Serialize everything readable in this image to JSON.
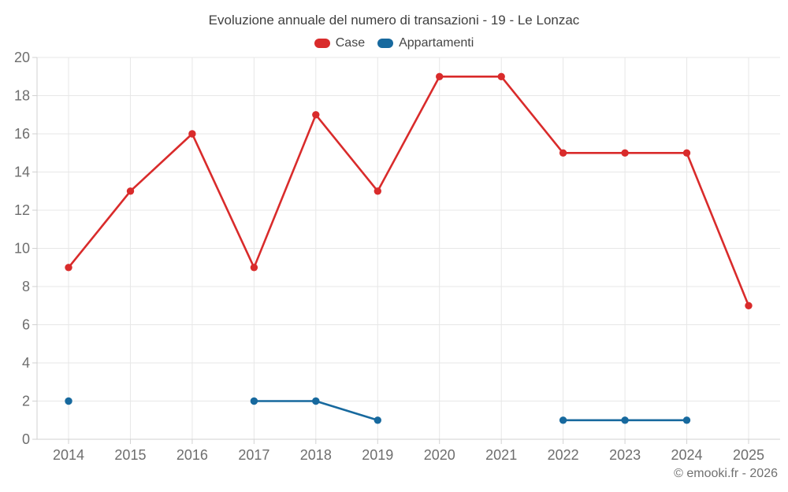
{
  "chart_data": {
    "type": "line",
    "title": "Evoluzione annuale del numero di transazioni - 19 - Le Lonzac",
    "categories": [
      "2014",
      "2015",
      "2016",
      "2017",
      "2018",
      "2019",
      "2020",
      "2021",
      "2022",
      "2023",
      "2024",
      "2025"
    ],
    "series": [
      {
        "name": "Case",
        "color": "#d92b2b",
        "values": [
          9,
          13,
          16,
          9,
          17,
          13,
          19,
          19,
          15,
          15,
          15,
          7
        ]
      },
      {
        "name": "Appartamenti",
        "color": "#17699e",
        "values": [
          2,
          null,
          null,
          2,
          2,
          1,
          null,
          null,
          1,
          1,
          1,
          null
        ]
      }
    ],
    "xlabel": "",
    "ylabel": "",
    "ylim": [
      0,
      20
    ],
    "ytick_step": 2,
    "grid": true,
    "legend_position": "top"
  },
  "footer": {
    "copyright": "© emooki.fr - 2026"
  },
  "colors": {
    "grid": "#e7e7e7",
    "axis": "#d2d2d2",
    "axis_label": "#6e6e6e",
    "title_text": "#404040",
    "legend_text": "#454545",
    "footer_text": "#707070",
    "background": "#ffffff"
  }
}
